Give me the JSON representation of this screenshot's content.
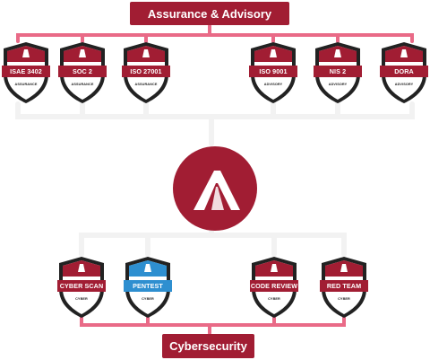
{
  "colors": {
    "brand": "#A11D33",
    "connector_pink": "#E96A87",
    "connector_white": "#F2F2F2",
    "shield_outline": "#222222",
    "pentest_blue": "#2E8FD0"
  },
  "top_label": {
    "text": "Assurance & Advisory"
  },
  "bottom_label": {
    "text": "Cybersecurity"
  },
  "logo": {
    "icon": "company-logo-icon"
  },
  "assurance_badges": [
    {
      "title": "ISAE 3402",
      "subtitle": "ASSURANCE",
      "variant": "brand"
    },
    {
      "title": "SOC 2",
      "subtitle": "ASSURANCE",
      "variant": "brand"
    },
    {
      "title": "ISO 27001",
      "subtitle": "ASSURANCE",
      "variant": "brand"
    },
    {
      "title": "ISO 9001",
      "subtitle": "ADVISORY",
      "variant": "brand"
    },
    {
      "title": "NIS 2",
      "subtitle": "ADVISORY",
      "variant": "brand"
    },
    {
      "title": "DORA",
      "subtitle": "ADVISORY",
      "variant": "brand"
    }
  ],
  "cyber_badges": [
    {
      "title": "CYBER SCAN",
      "subtitle": "CYBER",
      "variant": "brand"
    },
    {
      "title": "PENTEST",
      "subtitle": "CYBER",
      "variant": "blue"
    },
    {
      "title": "CODE REVIEW",
      "subtitle": "CYBER",
      "variant": "brand"
    },
    {
      "title": "RED TEAM",
      "subtitle": "CYBER",
      "variant": "brand"
    }
  ]
}
